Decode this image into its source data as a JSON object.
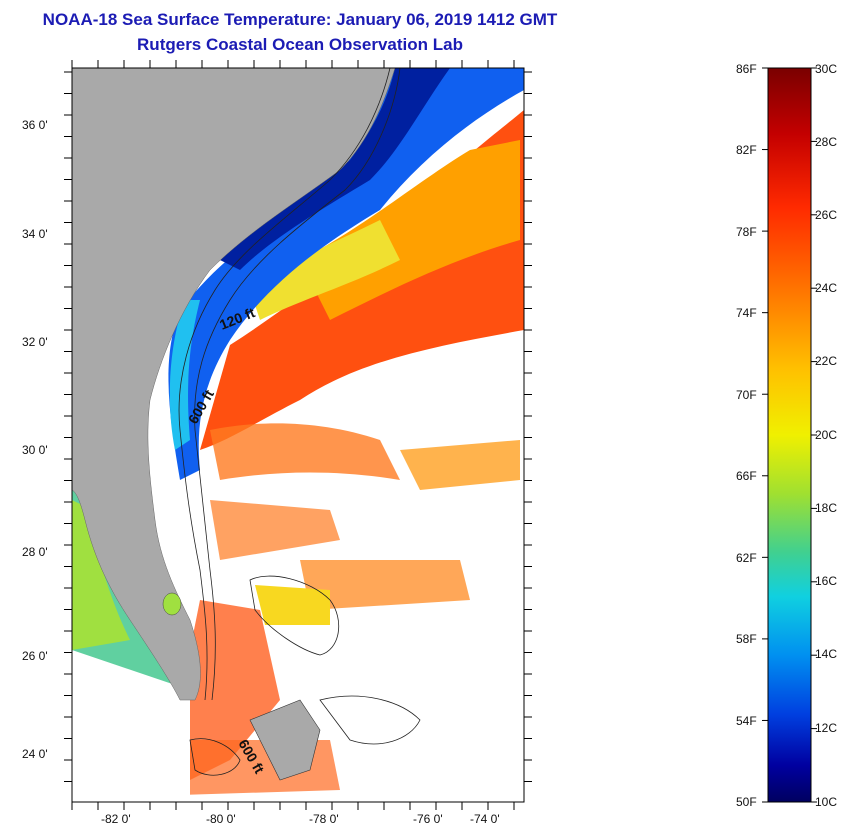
{
  "header": {
    "title": "NOAA-18 Sea Surface Temperature:  January 06, 2019 1412 GMT",
    "subtitle": "Rutgers Coastal Ocean Observation Lab"
  },
  "map": {
    "lat_labels": [
      "36 0'",
      "34 0'",
      "32 0'",
      "30 0'",
      "28 0'",
      "26 0'",
      "24 0'"
    ],
    "lon_labels": [
      "-82 0'",
      "-80 0'",
      "-78 0'",
      "-76 0'",
      "-74 0'"
    ],
    "contours": [
      "120 ft",
      "600 ft",
      "600 ft"
    ]
  },
  "colorbar": {
    "fahrenheit": [
      "86F",
      "82F",
      "78F",
      "74F",
      "70F",
      "66F",
      "62F",
      "58F",
      "54F",
      "50F"
    ],
    "celsius": [
      "30C",
      "28C",
      "26C",
      "24C",
      "22C",
      "20C",
      "18C",
      "16C",
      "14C",
      "12C",
      "10C"
    ],
    "colors": [
      "#7a0000",
      "#c40000",
      "#ff2a00",
      "#ff7a00",
      "#ffc000",
      "#f0f000",
      "#a0e030",
      "#40d090",
      "#10d0e0",
      "#0090f0",
      "#0040e0",
      "#0000a0",
      "#000060"
    ]
  }
}
